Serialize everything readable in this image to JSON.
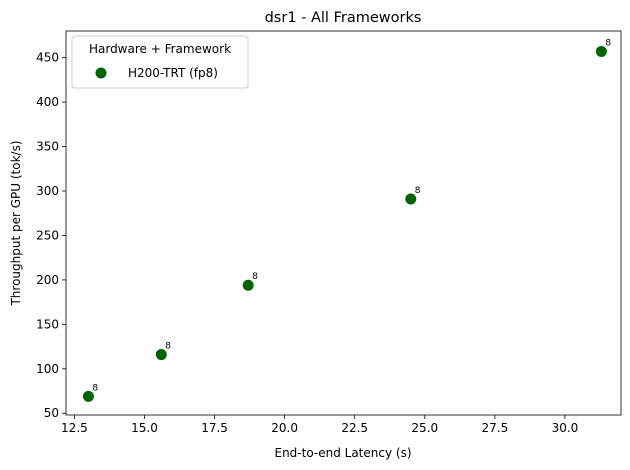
{
  "chart_data": {
    "type": "scatter",
    "title": "dsr1 - All Frameworks",
    "xlabel": "End-to-end Latency (s)",
    "ylabel": "Throughput per GPU (tok/s)",
    "xlim": [
      12.2,
      32.0
    ],
    "ylim": [
      48,
      480
    ],
    "xticks": [
      "12.5",
      "15.0",
      "17.5",
      "20.0",
      "22.5",
      "25.0",
      "27.5",
      "30.0"
    ],
    "yticks": [
      "50",
      "100",
      "150",
      "200",
      "250",
      "300",
      "350",
      "400",
      "450"
    ],
    "legend": {
      "title": "Hardware + Framework",
      "placement": "top-left"
    },
    "series": [
      {
        "name": "H200-TRT (fp8)",
        "color": "#006400",
        "points": [
          {
            "x": 13.0,
            "y": 69,
            "label": "8"
          },
          {
            "x": 15.6,
            "y": 116,
            "label": "8"
          },
          {
            "x": 18.7,
            "y": 194,
            "label": "8"
          },
          {
            "x": 24.5,
            "y": 291,
            "label": "8"
          },
          {
            "x": 31.3,
            "y": 457,
            "label": "8"
          }
        ]
      }
    ]
  }
}
